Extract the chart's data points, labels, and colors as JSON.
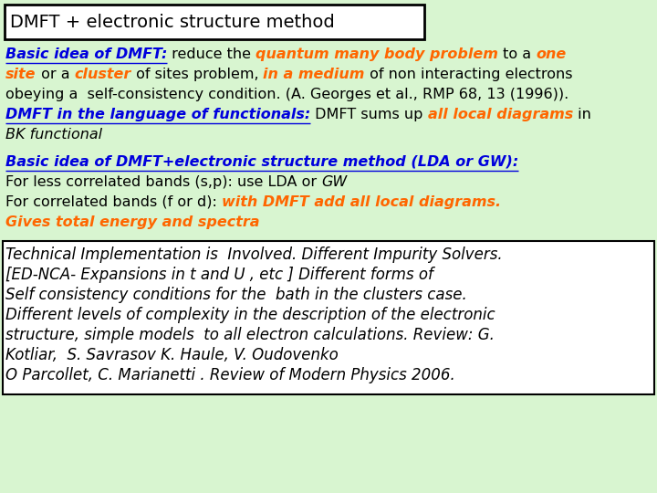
{
  "background_color": "#d8f5d0",
  "title_text": "DMFT + electronic structure method",
  "title_fontsize": 14,
  "body_fontsize": 11.5,
  "section3_fontsize": 12,
  "colors": {
    "blue": "#0000dd",
    "orange": "#ff6600",
    "black": "#000000"
  },
  "section1_lines": [
    [
      {
        "text": "Basic idea of DMFT:",
        "color": "#0000dd",
        "bold": true,
        "italic": true,
        "underline": true
      },
      {
        "text": " reduce the ",
        "color": "#000000",
        "bold": false,
        "italic": false
      },
      {
        "text": "quantum many body problem",
        "color": "#ff6600",
        "bold": true,
        "italic": true
      },
      {
        "text": " to a ",
        "color": "#000000",
        "bold": false,
        "italic": false
      },
      {
        "text": "one",
        "color": "#ff6600",
        "bold": true,
        "italic": true
      }
    ],
    [
      {
        "text": "site",
        "color": "#ff6600",
        "bold": true,
        "italic": true
      },
      {
        "text": " or a ",
        "color": "#000000",
        "bold": false,
        "italic": false
      },
      {
        "text": "cluster",
        "color": "#ff6600",
        "bold": true,
        "italic": true
      },
      {
        "text": " of sites problem, ",
        "color": "#000000",
        "bold": false,
        "italic": false
      },
      {
        "text": "in a medium",
        "color": "#ff6600",
        "bold": true,
        "italic": true
      },
      {
        "text": " of non interacting electrons",
        "color": "#000000",
        "bold": false,
        "italic": false
      }
    ],
    [
      {
        "text": "obeying a  self-consistency condition. (A. Georges et al., RMP 68, 13 (1996)).",
        "color": "#000000",
        "bold": false,
        "italic": false
      }
    ],
    [
      {
        "text": "DMFT in the language of functionals:",
        "color": "#0000dd",
        "bold": true,
        "italic": true,
        "underline": true
      },
      {
        "text": " DMFT sums up ",
        "color": "#000000",
        "bold": false,
        "italic": false
      },
      {
        "text": "all local diagrams",
        "color": "#ff6600",
        "bold": true,
        "italic": true
      },
      {
        "text": " in",
        "color": "#000000",
        "bold": false,
        "italic": false
      }
    ],
    [
      {
        "text": "BK functional",
        "color": "#000000",
        "bold": false,
        "italic": true
      }
    ]
  ],
  "section2_lines": [
    [
      {
        "text": "Basic idea of DMFT+electronic structure method (LDA or GW):",
        "color": "#0000dd",
        "bold": true,
        "italic": true,
        "underline": true
      }
    ],
    [
      {
        "text": "For less correlated bands (s,p): use LDA or ",
        "color": "#000000",
        "bold": false,
        "italic": false
      },
      {
        "text": "GW",
        "color": "#000000",
        "bold": false,
        "italic": true
      }
    ],
    [
      {
        "text": "For correlated bands (f or d): ",
        "color": "#000000",
        "bold": false,
        "italic": false
      },
      {
        "text": "with DMFT add all local diagrams.",
        "color": "#ff6600",
        "bold": true,
        "italic": true
      }
    ],
    [
      {
        "text": "Gives total energy and spectra",
        "color": "#ff6600",
        "bold": true,
        "italic": true
      }
    ]
  ],
  "section3_lines": [
    "Technical Implementation is  Involved. Different Impurity Solvers.",
    "[ED-NCA- Expansions in t and U , etc ] Different forms of",
    "Self consistency conditions for the  bath in the clusters case.",
    "Different levels of complexity in the description of the electronic",
    "structure, simple models  to all electron calculations. Review: G.",
    "Kotliar,  S. Savrasov K. Haule, V. Oudovenko",
    "O Parcollet, C. Marianetti . Review of Modern Physics 2006."
  ]
}
